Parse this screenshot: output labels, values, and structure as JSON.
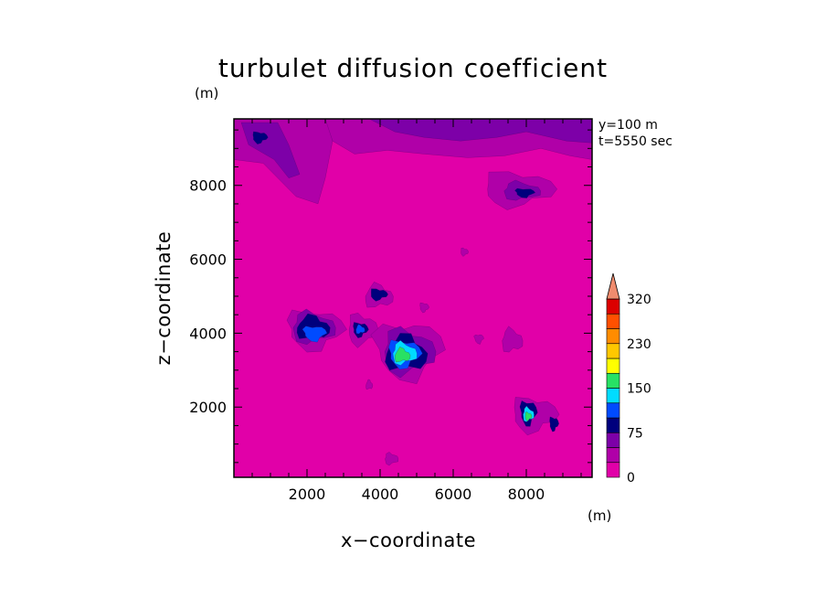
{
  "chart_data": {
    "type": "heatmap",
    "title": "turbulet diffusion coefficient",
    "xlabel": "x−coordinate",
    "ylabel": "z−coordinate",
    "x_unit": "(m)",
    "y_unit": "(m)",
    "info_lines": [
      "y=100  m",
      "t=5550  sec"
    ],
    "xlim": [
      0,
      9800
    ],
    "ylim": [
      100,
      9800
    ],
    "x_ticks": [
      2000,
      4000,
      6000,
      8000
    ],
    "x_tick_labels": [
      "2000",
      "4000",
      "6000",
      "8000"
    ],
    "y_ticks": [
      2000,
      4000,
      6000,
      8000
    ],
    "y_tick_labels": [
      "2000",
      "4000",
      "6000",
      "8000"
    ],
    "colorbar": {
      "levels": [
        0,
        25,
        50,
        75,
        100,
        125,
        150,
        175,
        200,
        230,
        260,
        290,
        320
      ],
      "tick_labels": [
        "0",
        "75",
        "150",
        "230",
        "320"
      ],
      "tick_values": [
        0,
        75,
        150,
        230,
        320
      ],
      "extend": "max",
      "colors": [
        "#e100a8",
        "#b000a8",
        "#7d00a8",
        "#00007d",
        "#004bff",
        "#00dcff",
        "#28e164",
        "#ffff00",
        "#ffc800",
        "#ff8c00",
        "#ff5000",
        "#dc0000",
        "#f08c6e"
      ]
    },
    "background_value_range": [
      0,
      25
    ],
    "features": [
      {
        "region": "upper band",
        "x": [
          3000,
          9800
        ],
        "z": [
          9000,
          9800
        ],
        "level": 50
      },
      {
        "region": "upper-left patch",
        "x": [
          0,
          2600
        ],
        "z": [
          7800,
          9800
        ],
        "level": 25
      },
      {
        "region": "upper-left core",
        "x": 700,
        "z": 9300,
        "level": 75
      },
      {
        "region": "upper-right core",
        "x": 7900,
        "z": 7800,
        "level": 75
      },
      {
        "region": "left cluster",
        "x": [
          1600,
          2800
        ],
        "z": [
          3700,
          4600
        ],
        "level": 100
      },
      {
        "region": "center cluster",
        "x": [
          4200,
          5300
        ],
        "z": [
          2900,
          3900
        ],
        "level": 175
      },
      {
        "region": "lower-right spot",
        "x": 8100,
        "z": 1800,
        "level": 175
      }
    ]
  }
}
